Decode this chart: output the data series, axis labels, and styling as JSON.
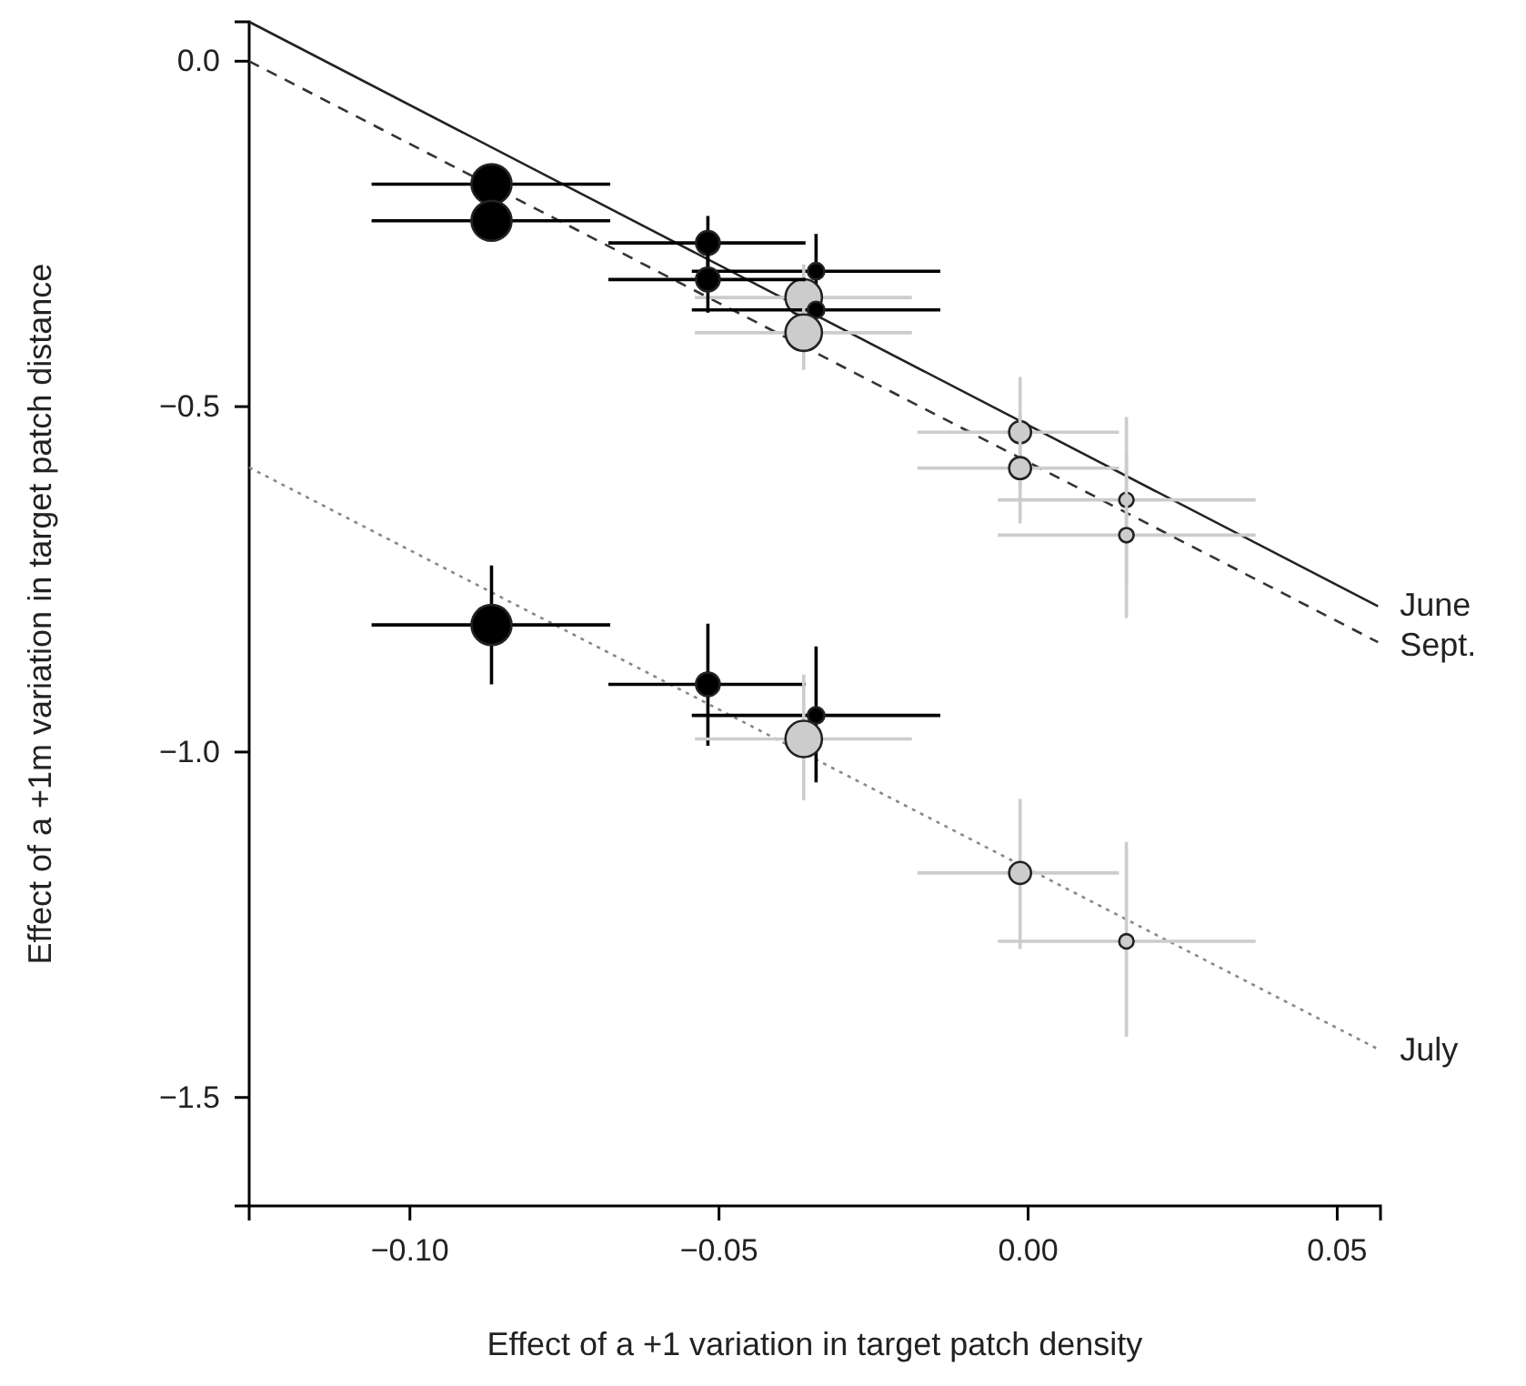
{
  "chart_data": {
    "type": "bubble",
    "xlabel": "Effect of a +1 variation in target patch density",
    "ylabel": "Effect of a +1m variation in target patch distance",
    "xlim": [
      -0.126,
      0.057
    ],
    "ylim": [
      -1.657,
      0.057
    ],
    "xticks": [
      {
        "value": -0.1,
        "label": "−0.10"
      },
      {
        "value": -0.05,
        "label": "−0.05"
      },
      {
        "value": 0,
        "label": "0.00"
      },
      {
        "value": 0.05,
        "label": "0.05"
      }
    ],
    "yticks": [
      {
        "value": 0,
        "label": "0.0"
      },
      {
        "value": -0.5,
        "label": "−0.5"
      },
      {
        "value": -1,
        "label": "−1.0"
      },
      {
        "value": -1.5,
        "label": "−1.5"
      }
    ],
    "grid": false,
    "series": [
      {
        "marker": "circle",
        "x": [
          -0.0868,
          -0.0518,
          -0.0343,
          -0.0363,
          -0.0013,
          0.0159
        ],
        "values": [
          -0.178,
          -0.263,
          -0.304,
          -0.342,
          -0.537,
          -0.635
        ],
        "sizes": [
          1,
          0.35,
          0.17,
          0.83,
          0.3,
          0.13
        ],
        "colors": [
          "#000000",
          "#000000",
          "#000000",
          "#cccccc",
          "#cccccc",
          "#cccccc"
        ],
        "errors": [
          null,
          0.039,
          0.054,
          0.048,
          0.08,
          0.12
        ],
        "xerrors": [
          [
            -0.1062,
            -0.0676
          ],
          [
            -0.0679,
            -0.036
          ],
          [
            -0.0544,
            -0.0142
          ],
          [
            -0.0539,
            -0.0188
          ],
          [
            -0.0179,
            0.0147
          ],
          [
            -0.0049,
            0.0368
          ]
        ]
      },
      {
        "marker": "circle",
        "x": [
          -0.0868,
          -0.0518,
          -0.0343,
          -0.0363,
          -0.0013,
          0.0159
        ],
        "values": [
          -0.231,
          -0.316,
          -0.36,
          -0.393,
          -0.589,
          -0.686
        ],
        "sizes": [
          1,
          0.35,
          0.17,
          0.83,
          0.3,
          0.13
        ],
        "colors": [
          "#000000",
          "#000000",
          "#000000",
          "#cccccc",
          "#cccccc",
          "#cccccc"
        ],
        "errors": [
          null,
          0.048,
          null,
          0.054,
          0.08,
          0.12
        ],
        "xerrors": [
          [
            -0.1062,
            -0.0676
          ],
          [
            -0.0679,
            -0.036
          ],
          [
            -0.0544,
            -0.0142
          ],
          [
            -0.0539,
            -0.0188
          ],
          [
            -0.0179,
            0.0147
          ],
          [
            -0.0049,
            0.0368
          ]
        ]
      },
      {
        "marker": "circle",
        "x": [
          -0.0868,
          -0.0518,
          -0.0343,
          -0.0363,
          -0.0013,
          0.0159
        ],
        "values": [
          -0.816,
          -0.902,
          -0.947,
          -0.981,
          -1.175,
          -1.274
        ],
        "sizes": [
          1,
          0.35,
          0.17,
          0.83,
          0.3,
          0.13
        ],
        "colors": [
          "#000000",
          "#000000",
          "#000000",
          "#cccccc",
          "#cccccc",
          "#cccccc"
        ],
        "errors": [
          [
            -0.902,
            -0.73
          ],
          [
            -0.991,
            -0.814
          ],
          [
            -1.044,
            -0.847
          ],
          [
            -1.07,
            -0.888
          ],
          [
            -1.285,
            -1.068
          ],
          [
            -1.412,
            -1.13
          ]
        ],
        "xerrors": [
          [
            -0.1062,
            -0.0676
          ],
          [
            -0.0679,
            -0.036
          ],
          [
            -0.0544,
            -0.0142
          ],
          [
            -0.0539,
            -0.0188
          ],
          [
            -0.0179,
            0.0147
          ],
          [
            -0.0049,
            0.0368
          ]
        ]
      },
      {
        "type": "line",
        "name": "June",
        "x": [
          -0.126,
          0.0566
        ],
        "values": [
          0.057,
          -0.789
        ],
        "color": "#222222",
        "line_style": "solid"
      },
      {
        "type": "line",
        "name": "Sept.",
        "x": [
          -0.126,
          0.0566
        ],
        "values": [
          0.0,
          -0.841
        ],
        "color": "#333333",
        "line_style": "dashed"
      },
      {
        "type": "line",
        "name": "July",
        "x": [
          -0.126,
          0.0566
        ],
        "values": [
          -0.588,
          -1.43
        ],
        "color": "#888888",
        "line_style": "dotted"
      }
    ]
  }
}
